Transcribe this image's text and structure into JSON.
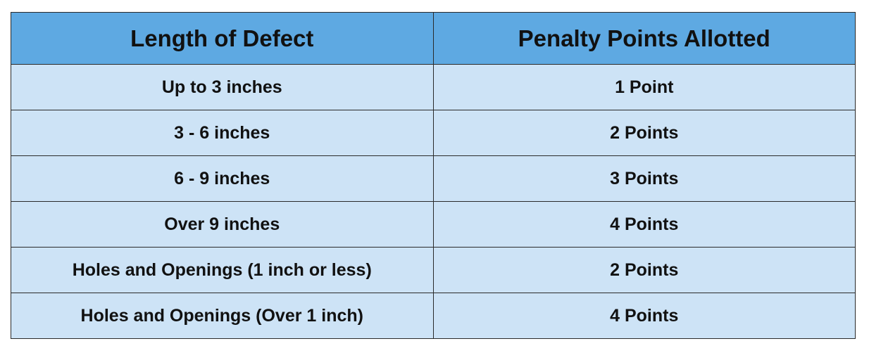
{
  "table": {
    "header": [
      "Length of Defect",
      "Penalty Points Allotted"
    ],
    "rows": [
      [
        "Up to 3 inches",
        "1 Point"
      ],
      [
        "3 - 6 inches",
        "2 Points"
      ],
      [
        "6 - 9 inches",
        "3 Points"
      ],
      [
        "Over 9 inches",
        "4 Points"
      ],
      [
        "Holes and Openings (1 inch or less)",
        "2 Points"
      ],
      [
        "Holes and Openings (Over 1 inch)",
        "4 Points"
      ]
    ]
  }
}
